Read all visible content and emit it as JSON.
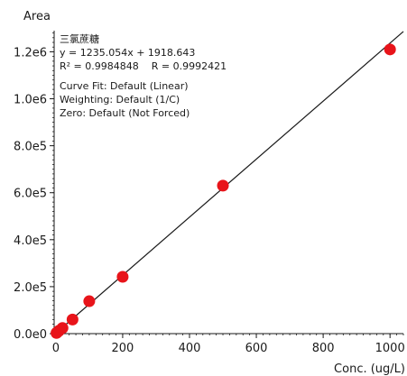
{
  "chart_data": {
    "type": "scatter",
    "ylabel": "Area",
    "xlabel": "Conc. (ug/L)",
    "xlim": [
      -5,
      1040
    ],
    "ylim": [
      0,
      1290000
    ],
    "x_ticks": [
      0,
      200,
      400,
      600,
      800,
      1000
    ],
    "x_tick_labels": [
      "0",
      "200",
      "400",
      "600",
      "800",
      "1000"
    ],
    "y_ticks": [
      0,
      200000,
      400000,
      600000,
      800000,
      1000000,
      1200000
    ],
    "y_tick_labels": [
      "0.0e0",
      "2.0e5",
      "4.0e5",
      "6.0e5",
      "8.0e5",
      "1.0e6",
      "1.2e6"
    ],
    "grid": false,
    "series": [
      {
        "marker_color": "#e8141a",
        "x": [
          2,
          5,
          10,
          20,
          50,
          100,
          200,
          500,
          1000
        ],
        "y": [
          3000,
          6500,
          13000,
          24000,
          60000,
          138000,
          242000,
          630000,
          1210000
        ]
      }
    ],
    "fit_line": {
      "slope": 1235.054,
      "intercept": 1918.643,
      "color": "#1a1a1a"
    },
    "annotations": {
      "compound": "三氯蔗糖",
      "equation": "y = 1235.054x + 1918.643",
      "r_squared": "R² = 0.9984848    R = 0.9992421",
      "curve_fit": "Curve Fit: Default (Linear)",
      "weighting": "Weighting: Default (1/C)",
      "zero": "Zero: Default (Not Forced)"
    }
  }
}
